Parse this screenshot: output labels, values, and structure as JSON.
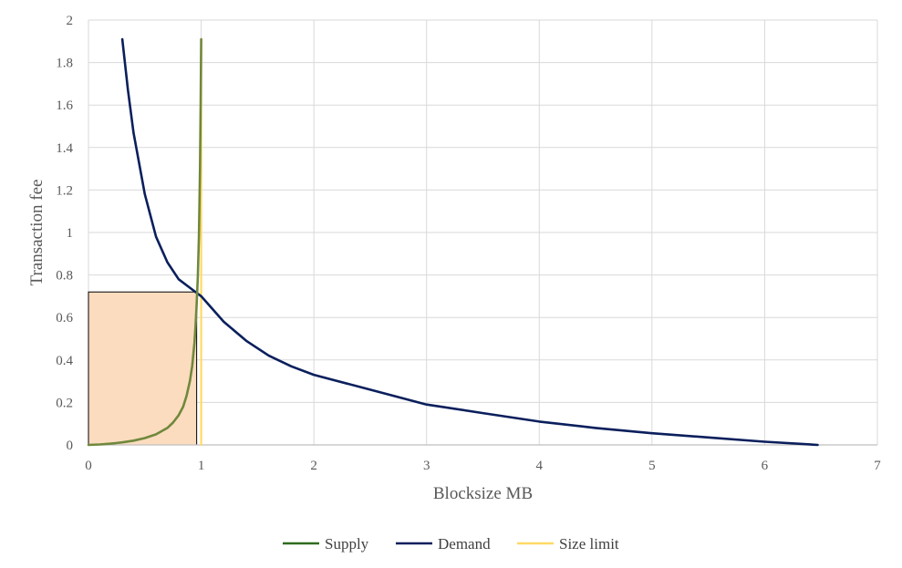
{
  "chart_data": {
    "type": "line",
    "title": "",
    "xlabel": "Blocksize MB",
    "ylabel": "Transaction fee",
    "xlim": [
      0,
      7
    ],
    "ylim": [
      0,
      2
    ],
    "x_ticks": [
      "0",
      "1",
      "2",
      "3",
      "4",
      "5",
      "6",
      "7"
    ],
    "y_ticks": [
      "0",
      "0.2",
      "0.4",
      "0.6",
      "0.8",
      "1",
      "1.2",
      "1.4",
      "1.6",
      "1.8",
      "2"
    ],
    "grid": true,
    "legend_position": "bottom",
    "series": [
      {
        "name": "Supply",
        "color": "#70883c",
        "legend_color": "#2e6b1f",
        "x": [
          0,
          0.1,
          0.2,
          0.3,
          0.4,
          0.5,
          0.6,
          0.7,
          0.75,
          0.8,
          0.84,
          0.87,
          0.9,
          0.92,
          0.94,
          0.95,
          0.96,
          0.97,
          0.98,
          0.99,
          0.995,
          1.0
        ],
        "y": [
          0,
          0.002,
          0.006,
          0.012,
          0.02,
          0.032,
          0.05,
          0.08,
          0.105,
          0.14,
          0.18,
          0.23,
          0.3,
          0.37,
          0.48,
          0.56,
          0.66,
          0.79,
          0.98,
          1.3,
          1.6,
          1.91
        ]
      },
      {
        "name": "Demand",
        "color": "#0a1f5c",
        "legend_color": "#0a1f5c",
        "x": [
          0.3,
          0.35,
          0.4,
          0.5,
          0.6,
          0.7,
          0.8,
          0.9,
          1.0,
          1.2,
          1.4,
          1.6,
          1.8,
          2.0,
          2.5,
          3.0,
          3.5,
          4.0,
          4.5,
          5.0,
          5.5,
          6.0,
          6.47
        ],
        "y": [
          1.91,
          1.67,
          1.47,
          1.18,
          0.98,
          0.86,
          0.78,
          0.74,
          0.7,
          0.58,
          0.49,
          0.42,
          0.37,
          0.33,
          0.26,
          0.19,
          0.15,
          0.11,
          0.08,
          0.055,
          0.035,
          0.015,
          0
        ]
      },
      {
        "name": "Size limit",
        "color": "#ffd966",
        "legend_color": "#ffd966",
        "x": [
          1.0,
          1.0
        ],
        "y": [
          0,
          1.91
        ]
      }
    ],
    "shaded_region": {
      "x": [
        0,
        0.96
      ],
      "y": [
        0,
        0.72
      ],
      "fill": "#fbdcbf",
      "stroke": "#000000"
    }
  }
}
